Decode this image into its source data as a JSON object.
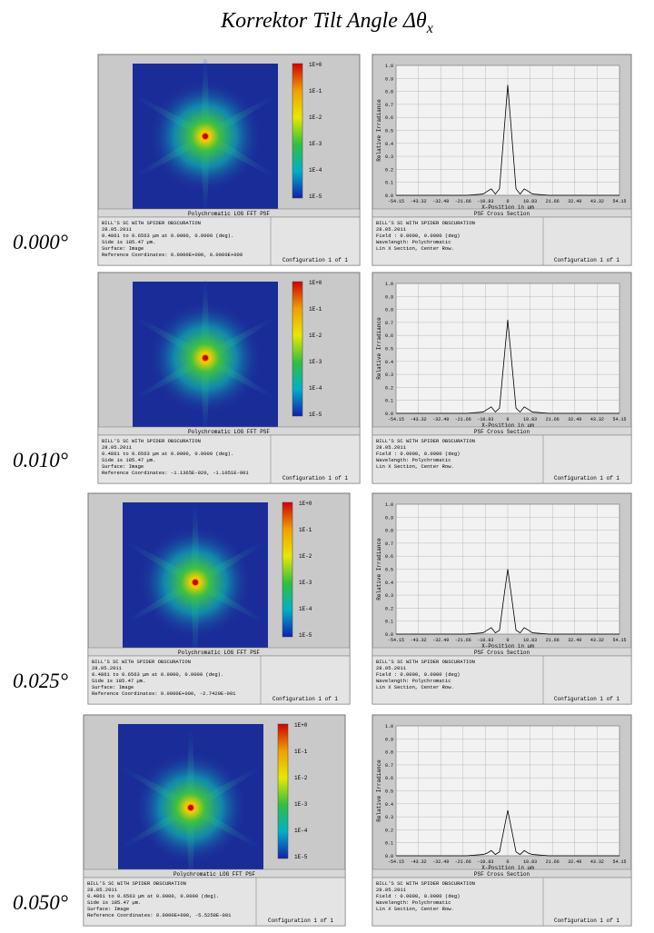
{
  "title": "Korrektor Tilt Angle Δθ",
  "title_subscript": "x",
  "colorbar_labels": [
    "1E+0",
    "1E-1",
    "1E-2",
    "1E-3",
    "1E-4",
    "1E-5"
  ],
  "rows": [
    {
      "angle": "0.000°",
      "psf": {
        "title": "Polychromatic LOG FFT PSF",
        "info": [
          "BILL'S SC WITH SPIDER OBSCURATION",
          "28.05.2011",
          "0.4861 to 0.6563 µm at 0.0000, 0.0000 (deg).",
          "Side is 185.47 µm.",
          "Surface: Image",
          "Reference Coordinates: 0.0000E+000, 0.0000E+000"
        ],
        "configuration": "Configuration 1 of 1"
      },
      "cross_section_info": [
        "BILL'S SC WITH SPIDER OBSCURATION",
        "28.05.2011",
        "Field        : 0.0000, 0.0000 (deg)",
        "Wavelength: Polychromatic",
        "Lin X Section, Center Row."
      ],
      "cross_section_configuration": "Configuration 1 of 1"
    },
    {
      "angle": "0.010°",
      "psf": {
        "title": "Polychromatic LOG FFT PSF",
        "info": [
          "BILL'S SC WITH SPIDER OBSCURATION",
          "28.05.2011",
          "0.4861 to 0.6563 µm at 0.0000, 0.0000 (deg).",
          "Side is 185.47 µm.",
          "Surface: Image",
          "Reference Coordinates: -1.1365E-020, -1.1051E-001"
        ],
        "configuration": "Configuration 1 of 1"
      },
      "cross_section_info": [
        "BILL'S SC WITH SPIDER OBSCURATION",
        "28.05.2011",
        "Field        : 0.0000, 0.0000 (deg)",
        "Wavelength: Polychromatic",
        "Lin X Section, Center Row."
      ],
      "cross_section_configuration": "Configuration 1 of 1"
    },
    {
      "angle": "0.025°",
      "psf": {
        "title": "Polychromatic LOG FFT PSF",
        "info": [
          "BILL'S SC WITH SPIDER OBSCURATION",
          "28.05.2011",
          "0.4861 to 0.6563 µm at 0.0000, 0.0000 (deg).",
          "Side is 185.47 µm.",
          "Surface: Image",
          "Reference Coordinates: 0.0000E+000, -2.7429E-001"
        ],
        "configuration": "Configuration 1 of 1"
      },
      "cross_section_info": [
        "BILL'S SC WITH SPIDER OBSCURATION",
        "28.05.2011",
        "Field        : 0.0000, 0.0000 (deg)",
        "Wavelength: Polychromatic",
        "Lin X Section, Center Row."
      ],
      "cross_section_configuration": "Configuration 1 of 1"
    },
    {
      "angle": "0.050°",
      "psf": {
        "title": "Polychromatic LOG FFT PSF",
        "info": [
          "BILL'S SC WITH SPIDER OBSCURATION",
          "28.05.2011",
          "0.4861 to 0.6563 µm at 0.0000, 0.0000 (deg).",
          "Side is 185.47 µm.",
          "Surface: Image",
          "Reference Coordinates: 0.0000E+000, -5.5258E-001"
        ],
        "configuration": "Configuration 1 of 1"
      },
      "cross_section_info": [
        "BILL'S SC WITH SPIDER OBSCURATION",
        "28.05.2011",
        "Field        : 0.0000, 0.0000 (deg)",
        "Wavelength: Polychromatic",
        "Lin X Section, Center Row."
      ],
      "cross_section_configuration": "Configuration 1 of 1"
    }
  ],
  "chart_data": [
    {
      "type": "line",
      "title": "PSF Cross Section",
      "xlabel": "X-Position in µm",
      "ylabel": "Relative Irradiance",
      "color": "#000000",
      "x": [
        -54.15,
        -20,
        -12,
        -10,
        -8,
        -6,
        -4,
        -2,
        0,
        2,
        4,
        6,
        8,
        10,
        12,
        20,
        54.15
      ],
      "values": [
        0,
        0,
        0.01,
        0.03,
        0.05,
        0.01,
        0.05,
        0.45,
        0.85,
        0.45,
        0.05,
        0.01,
        0.05,
        0.03,
        0.01,
        0,
        0
      ],
      "xlim": [
        -54.15,
        54.15
      ],
      "xticks": [
        -54.15,
        -43.32,
        -32.49,
        -21.66,
        -10.83,
        0,
        10.83,
        21.66,
        32.49,
        43.32,
        54.15
      ],
      "ylim": [
        0,
        1
      ],
      "yticks": [
        {
          "value": 0,
          "label": "0.0"
        },
        0.1,
        0.2,
        0.3,
        0.4,
        0.5,
        0.6,
        0.7,
        0.8,
        0.9,
        {
          "value": 1,
          "label": "1.0"
        }
      ],
      "grid": true
    },
    {
      "type": "line",
      "title": "PSF Cross Section",
      "xlabel": "X-Position in µm",
      "ylabel": "Relative Irradiance",
      "color": "#000000",
      "x": [
        -54.15,
        -20,
        -12,
        -10,
        -8,
        -6,
        -4,
        -2,
        0,
        2,
        4,
        6,
        8,
        10,
        12,
        20,
        54.15
      ],
      "values": [
        0,
        0,
        0.01,
        0.03,
        0.05,
        0.01,
        0.04,
        0.38,
        0.72,
        0.38,
        0.04,
        0.01,
        0.05,
        0.03,
        0.01,
        0,
        0
      ],
      "xlim": [
        -54.15,
        54.15
      ],
      "xticks": [
        -54.15,
        -43.32,
        -32.49,
        -21.66,
        -10.83,
        0,
        10.83,
        21.66,
        32.49,
        43.32,
        54.15
      ],
      "ylim": [
        0,
        1
      ],
      "yticks": [
        {
          "value": 0,
          "label": "0.0"
        },
        0.1,
        0.2,
        0.3,
        0.4,
        0.5,
        0.6,
        0.7,
        0.8,
        0.9,
        {
          "value": 1,
          "label": "1.0"
        }
      ],
      "grid": true
    },
    {
      "type": "line",
      "title": "PSF Cross Section",
      "xlabel": "X-Position in µm",
      "ylabel": "Relative Irradiance",
      "color": "#000000",
      "x": [
        -54.15,
        -20,
        -12,
        -10,
        -8,
        -6,
        -4,
        -2,
        0,
        2,
        4,
        6,
        8,
        10,
        12,
        20,
        54.15
      ],
      "values": [
        0,
        0,
        0.01,
        0.03,
        0.05,
        0.01,
        0.03,
        0.27,
        0.5,
        0.27,
        0.03,
        0.01,
        0.05,
        0.03,
        0.01,
        0,
        0
      ],
      "xlim": [
        -54.15,
        54.15
      ],
      "xticks": [
        -54.15,
        -43.32,
        -32.49,
        -21.66,
        -10.83,
        0,
        10.83,
        21.66,
        32.49,
        43.32,
        54.15
      ],
      "ylim": [
        0,
        1
      ],
      "yticks": [
        {
          "value": 0,
          "label": "0.0"
        },
        0.1,
        0.2,
        0.3,
        0.4,
        0.5,
        0.6,
        0.7,
        0.8,
        0.9,
        {
          "value": 1,
          "label": "1.0"
        }
      ],
      "grid": true
    },
    {
      "type": "line",
      "title": "PSF Cross Section",
      "xlabel": "X-Position in µm",
      "ylabel": "Relative Irradiance",
      "color": "#000000",
      "x": [
        -54.15,
        -20,
        -12,
        -10,
        -8,
        -6,
        -4,
        -2,
        0,
        2,
        4,
        6,
        8,
        10,
        12,
        20,
        54.15
      ],
      "values": [
        0,
        0,
        0.01,
        0.02,
        0.04,
        0.01,
        0.03,
        0.19,
        0.35,
        0.19,
        0.03,
        0.01,
        0.04,
        0.02,
        0.01,
        0,
        0
      ],
      "xlim": [
        -54.15,
        54.15
      ],
      "xticks": [
        -54.15,
        -43.32,
        -32.49,
        -21.66,
        -10.83,
        0,
        10.83,
        21.66,
        32.49,
        43.32,
        54.15
      ],
      "ylim": [
        0,
        1
      ],
      "yticks": [
        {
          "value": 0,
          "label": "0.0"
        },
        0.1,
        0.2,
        0.3,
        0.4,
        0.5,
        0.6,
        0.7,
        0.8,
        0.9,
        {
          "value": 1,
          "label": "1.0"
        }
      ],
      "grid": true
    }
  ]
}
